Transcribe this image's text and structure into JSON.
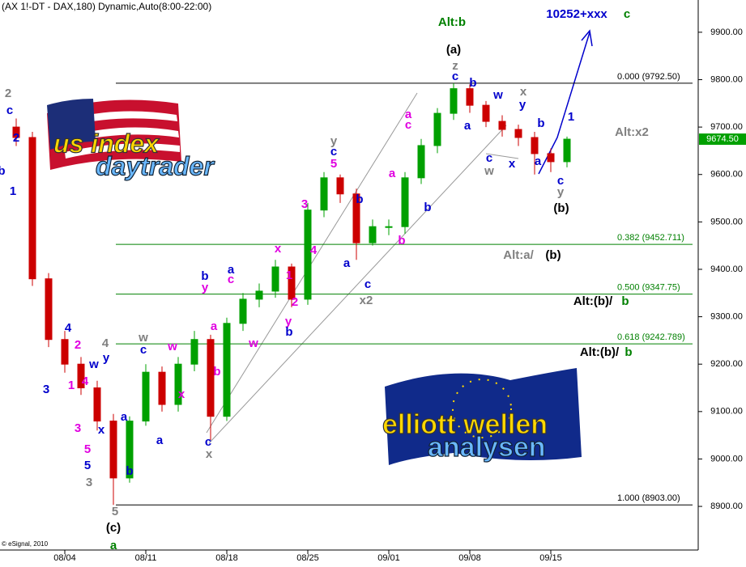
{
  "chart_data": {
    "type": "candlestick",
    "title": "(AX 1!-DT - DAX,180) Dynamic,Auto(8:00-22:00)",
    "copyright": "© eSignal, 2010",
    "categories": [
      null,
      null,
      null,
      "08/04",
      null,
      null,
      null,
      null,
      "08/11",
      null,
      null,
      null,
      null,
      "08/18",
      null,
      null,
      null,
      null,
      "08/25",
      null,
      null,
      null,
      null,
      "09/01",
      null,
      null,
      null,
      null,
      "09/08",
      null,
      null,
      null,
      null,
      "09/15",
      null
    ],
    "open": [
      9700,
      9678,
      9380,
      9252,
      9200,
      9150,
      9080,
      8960,
      9080,
      9183,
      9115,
      9200,
      9252,
      9090,
      9286,
      9337,
      9354,
      9405,
      9337,
      9525,
      9593,
      9559,
      9456,
      9490,
      9490,
      9593,
      9661,
      9729,
      9781,
      9746,
      9712,
      9695,
      9678,
      9644,
      9627
    ],
    "high": [
      9718,
      9690,
      9392,
      9270,
      9215,
      9165,
      9095,
      9090,
      9200,
      9195,
      9215,
      9270,
      9262,
      9298,
      9350,
      9370,
      9420,
      9412,
      9540,
      9605,
      9600,
      9570,
      9505,
      9505,
      9605,
      9675,
      9740,
      9792.5,
      9790,
      9755,
      9725,
      9705,
      9690,
      9655,
      9680
    ],
    "low": [
      9660,
      9365,
      9236,
      9182,
      9135,
      9060,
      8903,
      8950,
      9070,
      9100,
      9100,
      9185,
      9040,
      9080,
      9270,
      9320,
      9340,
      9320,
      9325,
      9510,
      9540,
      9420,
      9450,
      9472,
      9475,
      9580,
      9645,
      9715,
      9730,
      9700,
      9680,
      9660,
      9600,
      9605,
      9615
    ],
    "close": [
      9678,
      9380,
      9252,
      9200,
      9150,
      9080,
      8960,
      9080,
      9183,
      9115,
      9200,
      9252,
      9090,
      9286,
      9337,
      9354,
      9405,
      9337,
      9525,
      9593,
      9559,
      9456,
      9490,
      9490,
      9593,
      9661,
      9729,
      9781,
      9746,
      9712,
      9695,
      9678,
      9644,
      9627,
      9674.5
    ],
    "up_color": "#00a000",
    "down_color": "#cc0000",
    "last_label": "9674.50",
    "ylim": [
      8808,
      9968
    ],
    "yticks": [
      {
        "value": 8900,
        "label": "8900.00"
      },
      {
        "value": 9000,
        "label": "9000.00"
      },
      {
        "value": 9100,
        "label": "9100.00"
      },
      {
        "value": 9200,
        "label": "9200.00"
      },
      {
        "value": 9300,
        "label": "9300.00"
      },
      {
        "value": 9400,
        "label": "9400.00"
      },
      {
        "value": 9500,
        "label": "9500.00"
      },
      {
        "value": 9600,
        "label": "9600.00"
      },
      {
        "value": 9700,
        "label": "9700.00"
      },
      {
        "value": 9800,
        "label": "9800.00"
      },
      {
        "value": 9900,
        "label": "9900.00"
      }
    ],
    "levels": [
      {
        "value": 9792.5,
        "label": "0.000 (9792.50)",
        "color": "#000000"
      },
      {
        "value": 9452.711,
        "label": "0.382 (9452.711)",
        "color": "#008000"
      },
      {
        "value": 9347.75,
        "label": "0.500 (9347.75)",
        "color": "#008000"
      },
      {
        "value": 9242.789,
        "label": "0.618 (9242.789)",
        "color": "#008000"
      },
      {
        "value": 8903,
        "label": "1.000 (8903.00)",
        "color": "#000000"
      }
    ],
    "logos": [
      "us index",
      "daytrader",
      "elliott wellen",
      "analysen"
    ],
    "annotations": [
      {
        "text": "Alt:b",
        "color": "#008000"
      },
      {
        "text": "10252+xxx",
        "color": "#0000cc"
      },
      {
        "text": "c",
        "color": "#008000"
      },
      {
        "text": "(a)",
        "color": "#000000"
      },
      {
        "text": "z",
        "color": "#808080"
      },
      {
        "text": "c",
        "color": "#0000cc"
      },
      {
        "text": "b",
        "color": "#0000cc"
      },
      {
        "text": "a",
        "color": "#0000cc"
      },
      {
        "text": "w",
        "color": "#0000cc"
      },
      {
        "text": "x",
        "color": "#808080"
      },
      {
        "text": "y",
        "color": "#0000cc"
      },
      {
        "text": "c",
        "color": "#0000cc"
      },
      {
        "text": "w",
        "color": "#808080"
      },
      {
        "text": "x",
        "color": "#0000cc"
      },
      {
        "text": "a",
        "color": "#0000cc"
      },
      {
        "text": "b",
        "color": "#0000cc"
      },
      {
        "text": "1",
        "color": "#0000cc"
      },
      {
        "text": "c",
        "color": "#0000cc"
      },
      {
        "text": "y",
        "color": "#808080"
      },
      {
        "text": "(b)",
        "color": "#000000"
      },
      {
        "text": "Alt:x2",
        "color": "#808080"
      },
      {
        "text": "Alt:a/",
        "color": "#808080"
      },
      {
        "text": "(b)",
        "color": "#000000"
      },
      {
        "text": "Alt:(b)/",
        "color": "#000000"
      },
      {
        "text": "b",
        "color": "#008000"
      },
      {
        "text": "Alt:(b)/",
        "color": "#000000"
      },
      {
        "text": "b",
        "color": "#008000"
      },
      {
        "text": "2",
        "color": "#808080"
      },
      {
        "text": "c",
        "color": "#0000cc"
      },
      {
        "text": "2",
        "color": "#0000cc"
      },
      {
        "text": "b",
        "color": "#0000cc"
      },
      {
        "text": "1",
        "color": "#0000cc"
      },
      {
        "text": "4",
        "color": "#0000cc"
      },
      {
        "text": "2",
        "color": "#e000e0"
      },
      {
        "text": "w",
        "color": "#0000cc"
      },
      {
        "text": "4",
        "color": "#808080"
      },
      {
        "text": "y",
        "color": "#0000cc"
      },
      {
        "text": "1",
        "color": "#e000e0"
      },
      {
        "text": "4",
        "color": "#e000e0"
      },
      {
        "text": "3",
        "color": "#0000cc"
      },
      {
        "text": "3",
        "color": "#e000e0"
      },
      {
        "text": "x",
        "color": "#0000cc"
      },
      {
        "text": "5",
        "color": "#e000e0"
      },
      {
        "text": "5",
        "color": "#0000cc"
      },
      {
        "text": "3",
        "color": "#808080"
      },
      {
        "text": "5",
        "color": "#808080"
      },
      {
        "text": "(c)",
        "color": "#000000"
      },
      {
        "text": "a",
        "color": "#008000"
      },
      {
        "text": "w",
        "color": "#808080"
      },
      {
        "text": "c",
        "color": "#0000cc"
      },
      {
        "text": "a",
        "color": "#0000cc"
      },
      {
        "text": "b",
        "color": "#0000cc"
      },
      {
        "text": "a",
        "color": "#0000cc"
      },
      {
        "text": "w",
        "color": "#e000e0"
      },
      {
        "text": "x",
        "color": "#e000e0"
      },
      {
        "text": "b",
        "color": "#0000cc"
      },
      {
        "text": "y",
        "color": "#e000e0"
      },
      {
        "text": "a",
        "color": "#e000e0"
      },
      {
        "text": "b",
        "color": "#e000e0"
      },
      {
        "text": "c",
        "color": "#0000cc"
      },
      {
        "text": "x",
        "color": "#808080"
      },
      {
        "text": "a",
        "color": "#0000cc"
      },
      {
        "text": "c",
        "color": "#e000e0"
      },
      {
        "text": "w",
        "color": "#e000e0"
      },
      {
        "text": "x",
        "color": "#e000e0"
      },
      {
        "text": "1",
        "color": "#e000e0"
      },
      {
        "text": "2",
        "color": "#e000e0"
      },
      {
        "text": "y",
        "color": "#e000e0"
      },
      {
        "text": "b",
        "color": "#0000cc"
      },
      {
        "text": "3",
        "color": "#e000e0"
      },
      {
        "text": "4",
        "color": "#e000e0"
      },
      {
        "text": "y",
        "color": "#808080"
      },
      {
        "text": "c",
        "color": "#0000cc"
      },
      {
        "text": "5",
        "color": "#e000e0"
      },
      {
        "text": "b",
        "color": "#0000cc"
      },
      {
        "text": "a",
        "color": "#0000cc"
      },
      {
        "text": "c",
        "color": "#0000cc"
      },
      {
        "text": "x2",
        "color": "#808080"
      },
      {
        "text": "a",
        "color": "#e000e0"
      },
      {
        "text": "b",
        "color": "#e000e0"
      },
      {
        "text": "a",
        "color": "#e000e0"
      },
      {
        "text": "c",
        "color": "#e000e0"
      },
      {
        "text": "b",
        "color": "#0000cc"
      }
    ]
  }
}
